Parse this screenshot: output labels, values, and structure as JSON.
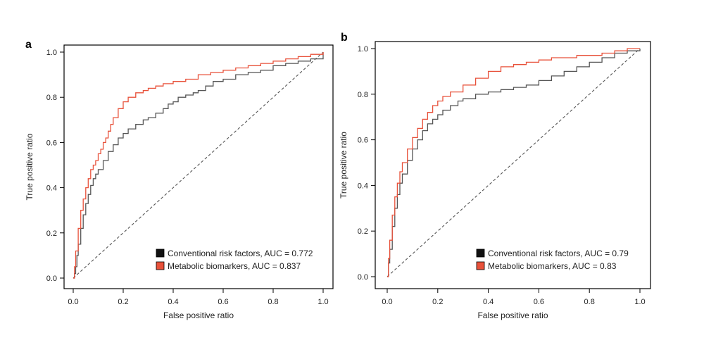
{
  "chart_data": [
    {
      "type": "line",
      "panel_label": "a",
      "xlabel": "False positive ratio",
      "ylabel": "True positive ratio",
      "xlim": [
        0,
        1
      ],
      "ylim": [
        0,
        1
      ],
      "x_ticks": [
        "0.0",
        "0.2",
        "0.4",
        "0.6",
        "0.8",
        "1.0"
      ],
      "y_ticks": [
        "0.0",
        "0.2",
        "0.4",
        "0.6",
        "0.8",
        "1.0"
      ],
      "grid": false,
      "legend_position": "bottom-right",
      "reference_line": {
        "style": "dashed",
        "x": [
          0,
          1
        ],
        "y": [
          0,
          1
        ]
      },
      "series": [
        {
          "name": "Conventional risk factors, AUC = 0.772",
          "color": "#555555",
          "x": [
            0,
            0.005,
            0.01,
            0.015,
            0.02,
            0.03,
            0.04,
            0.05,
            0.06,
            0.07,
            0.08,
            0.09,
            0.1,
            0.12,
            0.14,
            0.16,
            0.18,
            0.2,
            0.22,
            0.25,
            0.28,
            0.3,
            0.33,
            0.36,
            0.38,
            0.4,
            0.42,
            0.45,
            0.48,
            0.5,
            0.53,
            0.56,
            0.6,
            0.65,
            0.7,
            0.75,
            0.8,
            0.85,
            0.9,
            0.95,
            1.0
          ],
          "y": [
            0,
            0.02,
            0.05,
            0.1,
            0.15,
            0.22,
            0.28,
            0.33,
            0.37,
            0.41,
            0.44,
            0.46,
            0.48,
            0.52,
            0.56,
            0.59,
            0.62,
            0.64,
            0.66,
            0.68,
            0.7,
            0.71,
            0.73,
            0.75,
            0.77,
            0.78,
            0.8,
            0.81,
            0.82,
            0.83,
            0.85,
            0.87,
            0.88,
            0.9,
            0.91,
            0.92,
            0.94,
            0.95,
            0.96,
            0.97,
            1.0
          ]
        },
        {
          "name": "Metabolic biomarkers, AUC = 0.837",
          "color": "#e8513a",
          "x": [
            0,
            0.005,
            0.01,
            0.02,
            0.03,
            0.04,
            0.05,
            0.06,
            0.07,
            0.08,
            0.09,
            0.1,
            0.11,
            0.12,
            0.13,
            0.14,
            0.15,
            0.16,
            0.18,
            0.2,
            0.22,
            0.25,
            0.28,
            0.3,
            0.33,
            0.36,
            0.4,
            0.45,
            0.5,
            0.55,
            0.6,
            0.65,
            0.7,
            0.75,
            0.8,
            0.85,
            0.9,
            0.95,
            1.0
          ],
          "y": [
            0,
            0.05,
            0.12,
            0.22,
            0.3,
            0.35,
            0.4,
            0.44,
            0.48,
            0.5,
            0.52,
            0.55,
            0.57,
            0.6,
            0.62,
            0.65,
            0.68,
            0.71,
            0.75,
            0.78,
            0.8,
            0.82,
            0.83,
            0.84,
            0.85,
            0.86,
            0.87,
            0.88,
            0.9,
            0.91,
            0.92,
            0.93,
            0.94,
            0.95,
            0.96,
            0.97,
            0.98,
            0.99,
            1.0
          ]
        }
      ]
    },
    {
      "type": "line",
      "panel_label": "b",
      "xlabel": "False positive ratio",
      "ylabel": "True positive ratio",
      "xlim": [
        0,
        1
      ],
      "ylim": [
        0,
        1
      ],
      "x_ticks": [
        "0.0",
        "0.2",
        "0.4",
        "0.6",
        "0.8",
        "1.0"
      ],
      "y_ticks": [
        "0.0",
        "0.2",
        "0.4",
        "0.6",
        "0.8",
        "1.0"
      ],
      "grid": false,
      "legend_position": "bottom-right",
      "reference_line": {
        "style": "dashed",
        "x": [
          0,
          1
        ],
        "y": [
          0,
          1
        ]
      },
      "series": [
        {
          "name": "Conventional risk factors, AUC = 0.79",
          "color": "#555555",
          "x": [
            0,
            0.005,
            0.01,
            0.02,
            0.03,
            0.04,
            0.05,
            0.06,
            0.08,
            0.1,
            0.12,
            0.14,
            0.16,
            0.18,
            0.2,
            0.22,
            0.25,
            0.28,
            0.3,
            0.35,
            0.4,
            0.45,
            0.5,
            0.55,
            0.6,
            0.65,
            0.7,
            0.75,
            0.8,
            0.85,
            0.9,
            0.95,
            1.0
          ],
          "y": [
            0,
            0.06,
            0.12,
            0.22,
            0.3,
            0.36,
            0.41,
            0.45,
            0.51,
            0.56,
            0.6,
            0.64,
            0.67,
            0.69,
            0.71,
            0.73,
            0.75,
            0.77,
            0.78,
            0.8,
            0.81,
            0.82,
            0.83,
            0.84,
            0.86,
            0.88,
            0.9,
            0.92,
            0.94,
            0.96,
            0.98,
            0.99,
            1.0
          ]
        },
        {
          "name": "Metabolic biomarkers, AUC = 0.83",
          "color": "#e8513a",
          "x": [
            0,
            0.005,
            0.01,
            0.02,
            0.03,
            0.04,
            0.05,
            0.06,
            0.08,
            0.1,
            0.12,
            0.14,
            0.16,
            0.18,
            0.2,
            0.22,
            0.25,
            0.3,
            0.35,
            0.4,
            0.45,
            0.5,
            0.55,
            0.6,
            0.65,
            0.7,
            0.75,
            0.8,
            0.85,
            0.9,
            0.95,
            1.0
          ],
          "y": [
            0,
            0.08,
            0.16,
            0.27,
            0.35,
            0.41,
            0.46,
            0.5,
            0.56,
            0.61,
            0.65,
            0.69,
            0.72,
            0.75,
            0.77,
            0.79,
            0.81,
            0.84,
            0.87,
            0.9,
            0.92,
            0.93,
            0.94,
            0.95,
            0.96,
            0.96,
            0.97,
            0.97,
            0.98,
            0.99,
            1.0,
            1.0
          ]
        }
      ]
    }
  ]
}
